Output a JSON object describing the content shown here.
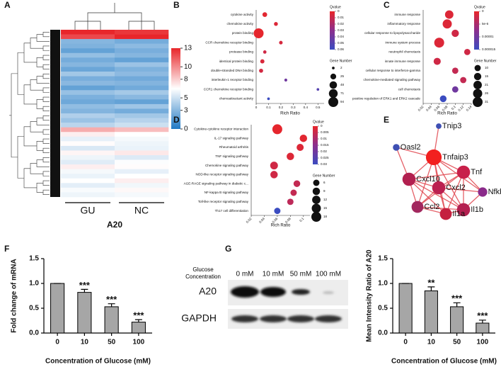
{
  "chart_data": [
    {
      "panel": "A",
      "type": "heatmap",
      "columns": [
        "GU",
        "NC"
      ],
      "group": "A20",
      "clim": [
        0,
        13
      ],
      "colorbar_ticks": [
        0,
        3,
        5,
        8,
        10,
        13
      ],
      "colors": [
        "#1f78c4",
        "#ffffff",
        "#e8262a"
      ],
      "values": [
        [
          13,
          12.5
        ],
        [
          12,
          13
        ],
        [
          3,
          2.5
        ],
        [
          2.8,
          3.2
        ],
        [
          2,
          2.6
        ],
        [
          3.4,
          3
        ],
        [
          2.5,
          2
        ],
        [
          3,
          3.6
        ],
        [
          2.2,
          2.8
        ],
        [
          3.8,
          3.2
        ],
        [
          2.6,
          2.4
        ],
        [
          3.1,
          2.9
        ],
        [
          2,
          2.4
        ],
        [
          3.5,
          3.9
        ],
        [
          2.7,
          3.1
        ],
        [
          2.3,
          2
        ],
        [
          3.3,
          3.7
        ],
        [
          2.9,
          2.5
        ],
        [
          4.2,
          3.8
        ],
        [
          3.6,
          4.4
        ],
        [
          4.5,
          5
        ],
        [
          9,
          8.5
        ],
        [
          7,
          6.5
        ],
        [
          5.8,
          6.2
        ],
        [
          6.6,
          6
        ],
        [
          5.4,
          5.9
        ],
        [
          6.8,
          7.2
        ],
        [
          6,
          5.5
        ],
        [
          5.6,
          6.4
        ],
        [
          7,
          6.6
        ],
        [
          6.2,
          5.8
        ],
        [
          5.9,
          6.5
        ],
        [
          6.5,
          7
        ],
        [
          5.7,
          6.1
        ],
        [
          6.3,
          6.7
        ],
        [
          6,
          6.2
        ]
      ]
    },
    {
      "panel": "B",
      "type": "dot",
      "categories": [
        "cytokine activity",
        "chemokine activity",
        "protein binding",
        "CCR chemokine receptor binding",
        "protease binding",
        "identical protein binding",
        "double-stranded DNA binding",
        "interleukin-1 receptor binding",
        "CCR1 chemokine receptor binding",
        "chemoattractant activity"
      ],
      "x": [
        0.07,
        0.16,
        0.02,
        0.2,
        0.07,
        0.05,
        0.04,
        0.24,
        0.5,
        0.1
      ],
      "qvalue": [
        0.002,
        0.004,
        0.001,
        0.006,
        0.008,
        0.005,
        0.007,
        0.04,
        0.05,
        0.06
      ],
      "gene_number": [
        14,
        8,
        94,
        6,
        5,
        10,
        9,
        3,
        2,
        2
      ],
      "xlim": [
        0,
        0.55
      ],
      "xticks": [
        0,
        0.1,
        0.2,
        0.3,
        0.4,
        0.5
      ],
      "xlabel": "Rich Ratio",
      "color_title": "Qvalue",
      "qlim": [
        0,
        0.06
      ],
      "qticks": [
        0,
        0.01,
        0.02,
        0.03,
        0.04,
        0.05,
        0.06
      ],
      "size_title": "Gene Number",
      "size_ticks": [
        2,
        25,
        48,
        71,
        94
      ],
      "colors": [
        "#e8262a",
        "#8b2f8e",
        "#3b4cc0"
      ]
    },
    {
      "panel": "C",
      "type": "dot",
      "categories": [
        "immune response",
        "inflammatory response",
        "cellular response to lipopolysaccharide",
        "immune system process",
        "neutrophil chemotaxis",
        "innate immune response",
        "cellular response to interferon-gamma",
        "chemokine-mediated signaling pathway",
        "cell chemotaxis",
        "positive regulation of ERK1 and ERK2 cascade"
      ],
      "x": [
        0.085,
        0.08,
        0.1,
        0.06,
        0.13,
        0.055,
        0.1,
        0.12,
        0.1,
        0.07
      ],
      "qvalue": [
        1e-06,
        1e-06,
        2e-06,
        1e-06,
        2e-06,
        2e-06,
        3e-06,
        3e-06,
        1e-05,
        1.5e-05
      ],
      "gene_number": [
        21,
        26,
        15,
        31,
        10,
        14,
        10,
        10,
        10,
        12
      ],
      "xlim": [
        0.02,
        0.14
      ],
      "xticks": [
        0.02,
        0.04,
        0.06,
        0.08,
        0.1,
        0.12,
        0.14
      ],
      "xlabel": "Rich Ratio",
      "color_title": "Qvalue",
      "qlim": [
        0,
        1.5e-05
      ],
      "qticks": [
        0,
        {
          "value": 5e-06,
          "label": "5e-6"
        },
        1e-05,
        1.5e-05
      ],
      "size_title": "Gene Number",
      "size_ticks": [
        10,
        15,
        21,
        26,
        31
      ],
      "colors": [
        "#e8262a",
        "#8b2f8e",
        "#3b4cc0"
      ]
    },
    {
      "panel": "D",
      "type": "dot",
      "categories": [
        "Cytokine-cytokine receptor interaction",
        "IL-17 signaling pathway",
        "Rheumatoid arthritis",
        "TNF signaling pathway",
        "Chemokine signaling pathway",
        "NOD-like receptor signaling pathway",
        "AGE-RAGE signaling pathway in diabetic c...",
        "NF-kappa B signaling pathway",
        "Toll-like receptor signaling pathway",
        "Th17 cell differentiation"
      ],
      "x": [
        0.06,
        0.1,
        0.095,
        0.08,
        0.055,
        0.055,
        0.09,
        0.085,
        0.08,
        0.06
      ],
      "qvalue": [
        0.0005,
        0.001,
        0.002,
        0.002,
        0.004,
        0.004,
        0.006,
        0.006,
        0.007,
        0.03
      ],
      "gene_number": [
        18,
        9,
        8,
        9,
        10,
        9,
        7,
        6,
        6,
        6
      ],
      "xlim": [
        0.02,
        0.11
      ],
      "xticks": [
        0.02,
        0.04,
        0.06,
        0.08,
        0.1
      ],
      "xlabel": "Rich Ratio",
      "color_title": "Qvalue",
      "qlim": [
        0,
        0.03
      ],
      "qticks": [
        0,
        0.005,
        0.01,
        0.015,
        0.02,
        0.025,
        0.03
      ],
      "size_title": "Gene Number",
      "size_ticks": [
        6,
        9,
        12,
        15,
        18
      ],
      "colors": [
        "#e8262a",
        "#8b2f8e",
        "#3b4cc0"
      ]
    },
    {
      "panel": "E",
      "type": "network",
      "nodes": [
        {
          "label": "Tnip3",
          "color": "#3e4fb3"
        },
        {
          "label": "Oasl2",
          "color": "#3e4fb3"
        },
        {
          "label": "Tnfaip3",
          "color": "#f2201f"
        },
        {
          "label": "Tnf",
          "color": "#c8204a"
        },
        {
          "label": "Cxcl10",
          "color": "#b2204f"
        },
        {
          "label": "Cxcl2",
          "color": "#bb2050"
        },
        {
          "label": "Nfkbiz",
          "color": "#8a2a8a"
        },
        {
          "label": "Ccl2",
          "color": "#a2285e"
        },
        {
          "label": "Il1b",
          "color": "#b42050"
        },
        {
          "label": "Il1a",
          "color": "#c42040"
        }
      ],
      "edges": [
        [
          0,
          2
        ],
        [
          1,
          2
        ],
        [
          1,
          4
        ],
        [
          2,
          3
        ],
        [
          2,
          4
        ],
        [
          2,
          5
        ],
        [
          2,
          6
        ],
        [
          2,
          7
        ],
        [
          2,
          8
        ],
        [
          2,
          9
        ],
        [
          3,
          4
        ],
        [
          3,
          5
        ],
        [
          3,
          6
        ],
        [
          3,
          7
        ],
        [
          3,
          8
        ],
        [
          3,
          9
        ],
        [
          4,
          5
        ],
        [
          4,
          7
        ],
        [
          4,
          8
        ],
        [
          4,
          9
        ],
        [
          5,
          6
        ],
        [
          5,
          7
        ],
        [
          5,
          8
        ],
        [
          5,
          9
        ],
        [
          6,
          8
        ],
        [
          7,
          8
        ],
        [
          7,
          9
        ],
        [
          8,
          9
        ]
      ],
      "edge_color": "#e0464f"
    },
    {
      "panel": "F",
      "type": "bar",
      "categories": [
        "0",
        "10",
        "50",
        "100"
      ],
      "values": [
        1,
        0.82,
        0.53,
        0.22
      ],
      "errors": [
        0,
        0.06,
        0.06,
        0.05
      ],
      "annotations": [
        null,
        "***",
        "***",
        "***"
      ],
      "ylim": [
        0,
        1.5
      ],
      "yticks": [
        {
          "value": 0,
          "label": "0.0"
        },
        {
          "value": 0.5,
          "label": "0.5"
        },
        {
          "value": 1,
          "label": "1.0"
        },
        {
          "value": 1.5,
          "label": "1.5"
        }
      ],
      "ylabel": "Fold change of mRNA",
      "xlabel": "Concentration of Glucose (mM)",
      "color": "#a6a6a6"
    },
    {
      "panel": "G",
      "type": "blot",
      "condition_label": "Glucose Concentration",
      "lanes": [
        "0 mM",
        "10 mM",
        "50 mM",
        "100 mM"
      ],
      "rows": [
        "A20",
        "GAPDH"
      ]
    },
    {
      "type": "bar",
      "categories": [
        "0",
        "10",
        "50",
        "100"
      ],
      "values": [
        1,
        0.85,
        0.53,
        0.2
      ],
      "errors": [
        0,
        0.08,
        0.08,
        0.06
      ],
      "annotations": [
        null,
        "**",
        "***",
        "***"
      ],
      "ylim": [
        0,
        1.5
      ],
      "yticks": [
        {
          "value": 0,
          "label": "0.0"
        },
        {
          "value": 0.5,
          "label": "0.5"
        },
        {
          "value": 1,
          "label": "1.0"
        },
        {
          "value": 1.5,
          "label": "1.5"
        }
      ],
      "ylabel": "Mean Intensity Ratio of A20",
      "xlabel": "Concentration of Glucose (mM)",
      "color": "#a6a6a6"
    }
  ]
}
